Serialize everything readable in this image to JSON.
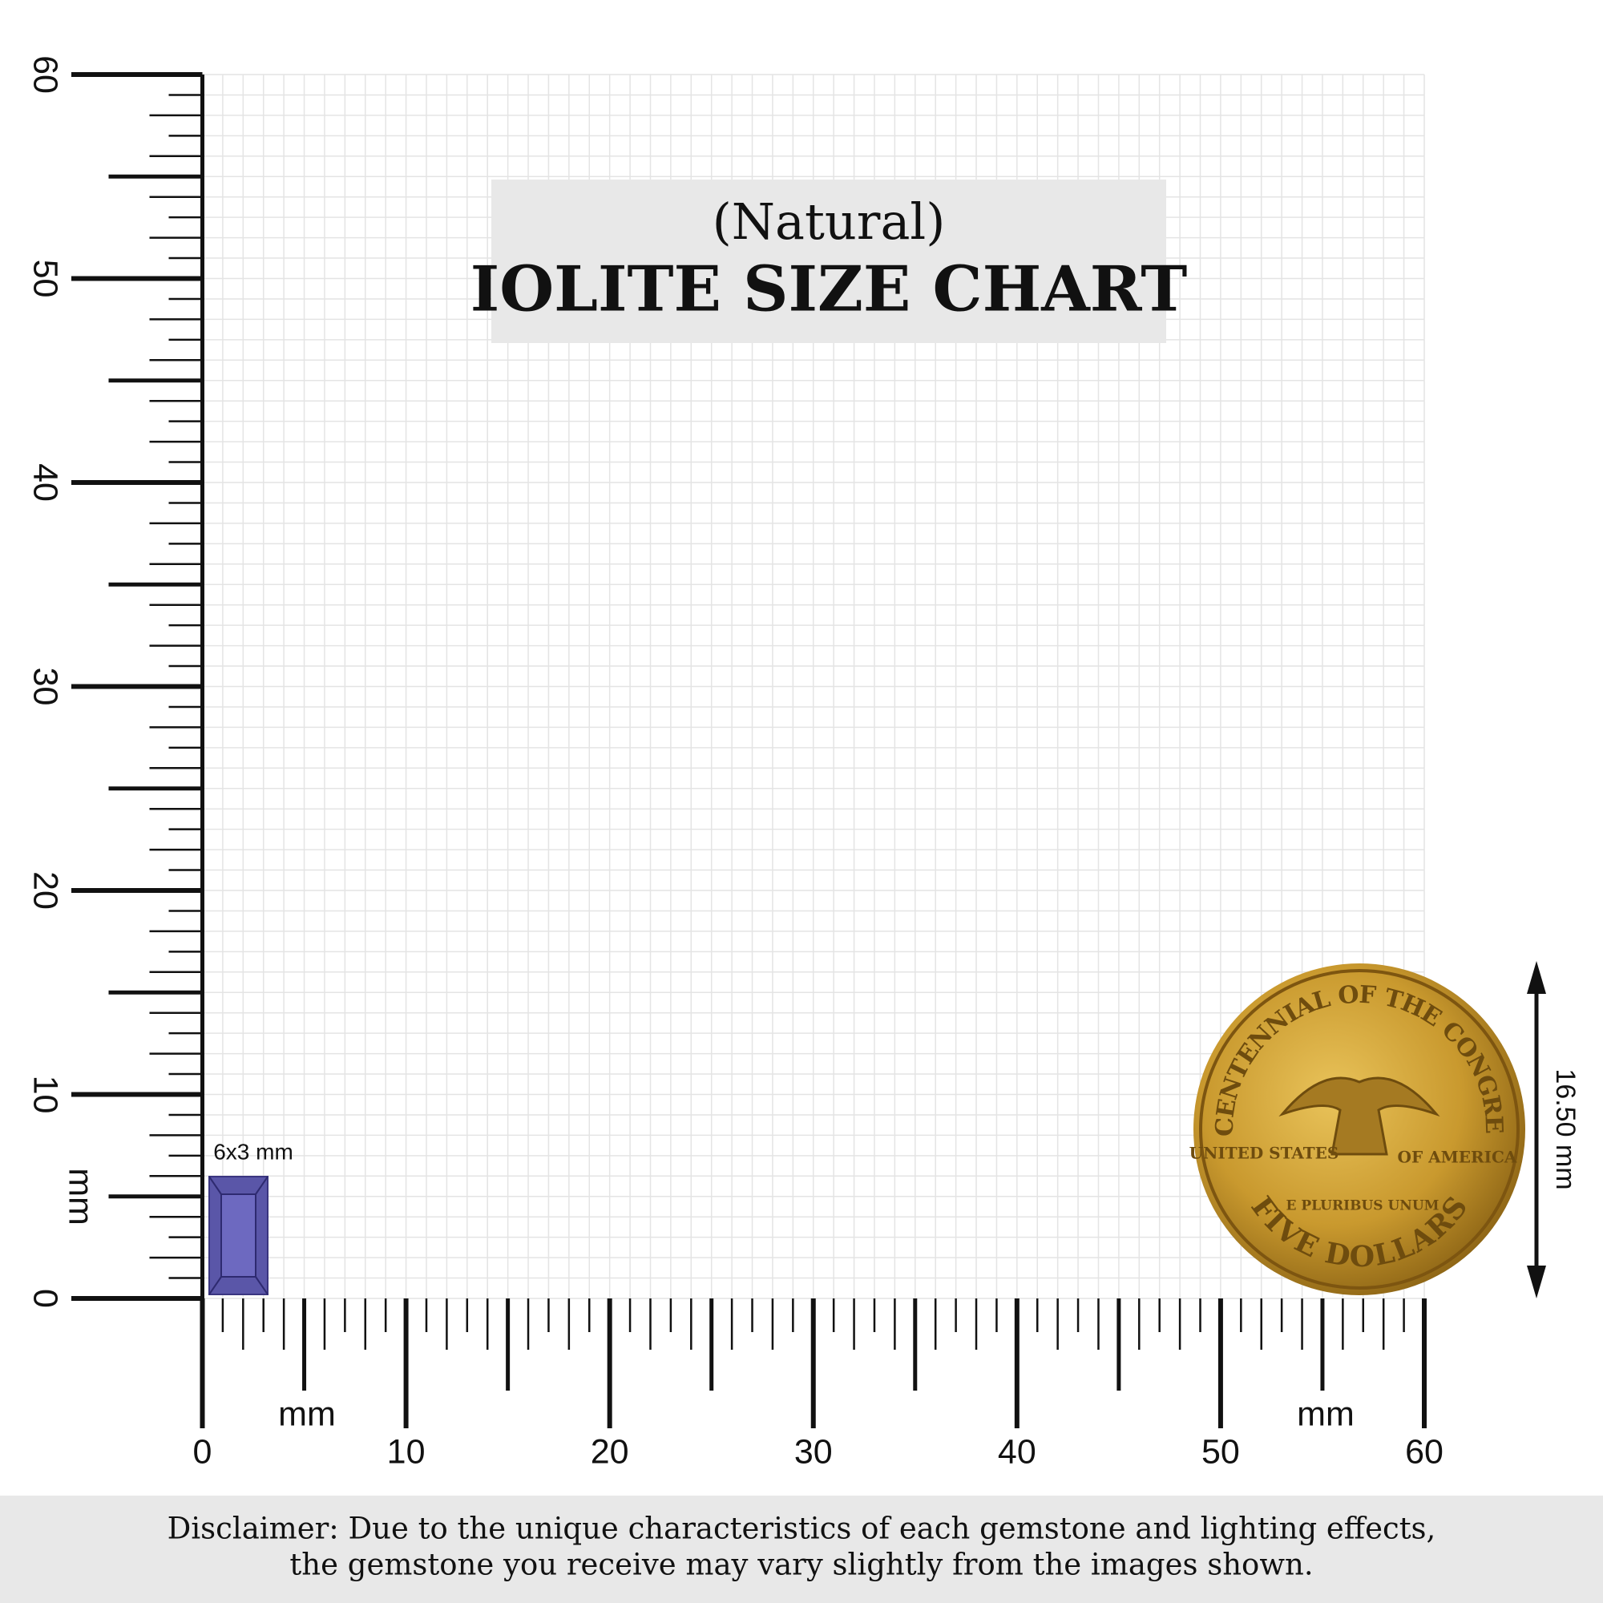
{
  "header": {
    "subtitle": "(Natural)",
    "title": "IOLITE SIZE CHART"
  },
  "ruler": {
    "x_ticks": [
      0,
      10,
      20,
      30,
      40,
      50,
      60
    ],
    "y_ticks": [
      0,
      10,
      20,
      30,
      40,
      50,
      60
    ],
    "x_unit_left": "mm",
    "x_unit_right": "mm",
    "y_unit": "mm"
  },
  "gem": {
    "label": "6x3 mm"
  },
  "coin": {
    "label": "16.50 mm",
    "top_text": "BICENTENNIAL OF THE CONGRESS",
    "left_text": "UNITED STATES",
    "right_text": "OF AMERICA",
    "motto": "E PLURIBUS UNUM",
    "bottom_text": "FIVE DOLLARS"
  },
  "disclaimer": [
    "Disclaimer: Due to the unique characteristics of each gemstone and lighting effects,",
    "the gemstone you receive may vary slightly from the images shown."
  ]
}
